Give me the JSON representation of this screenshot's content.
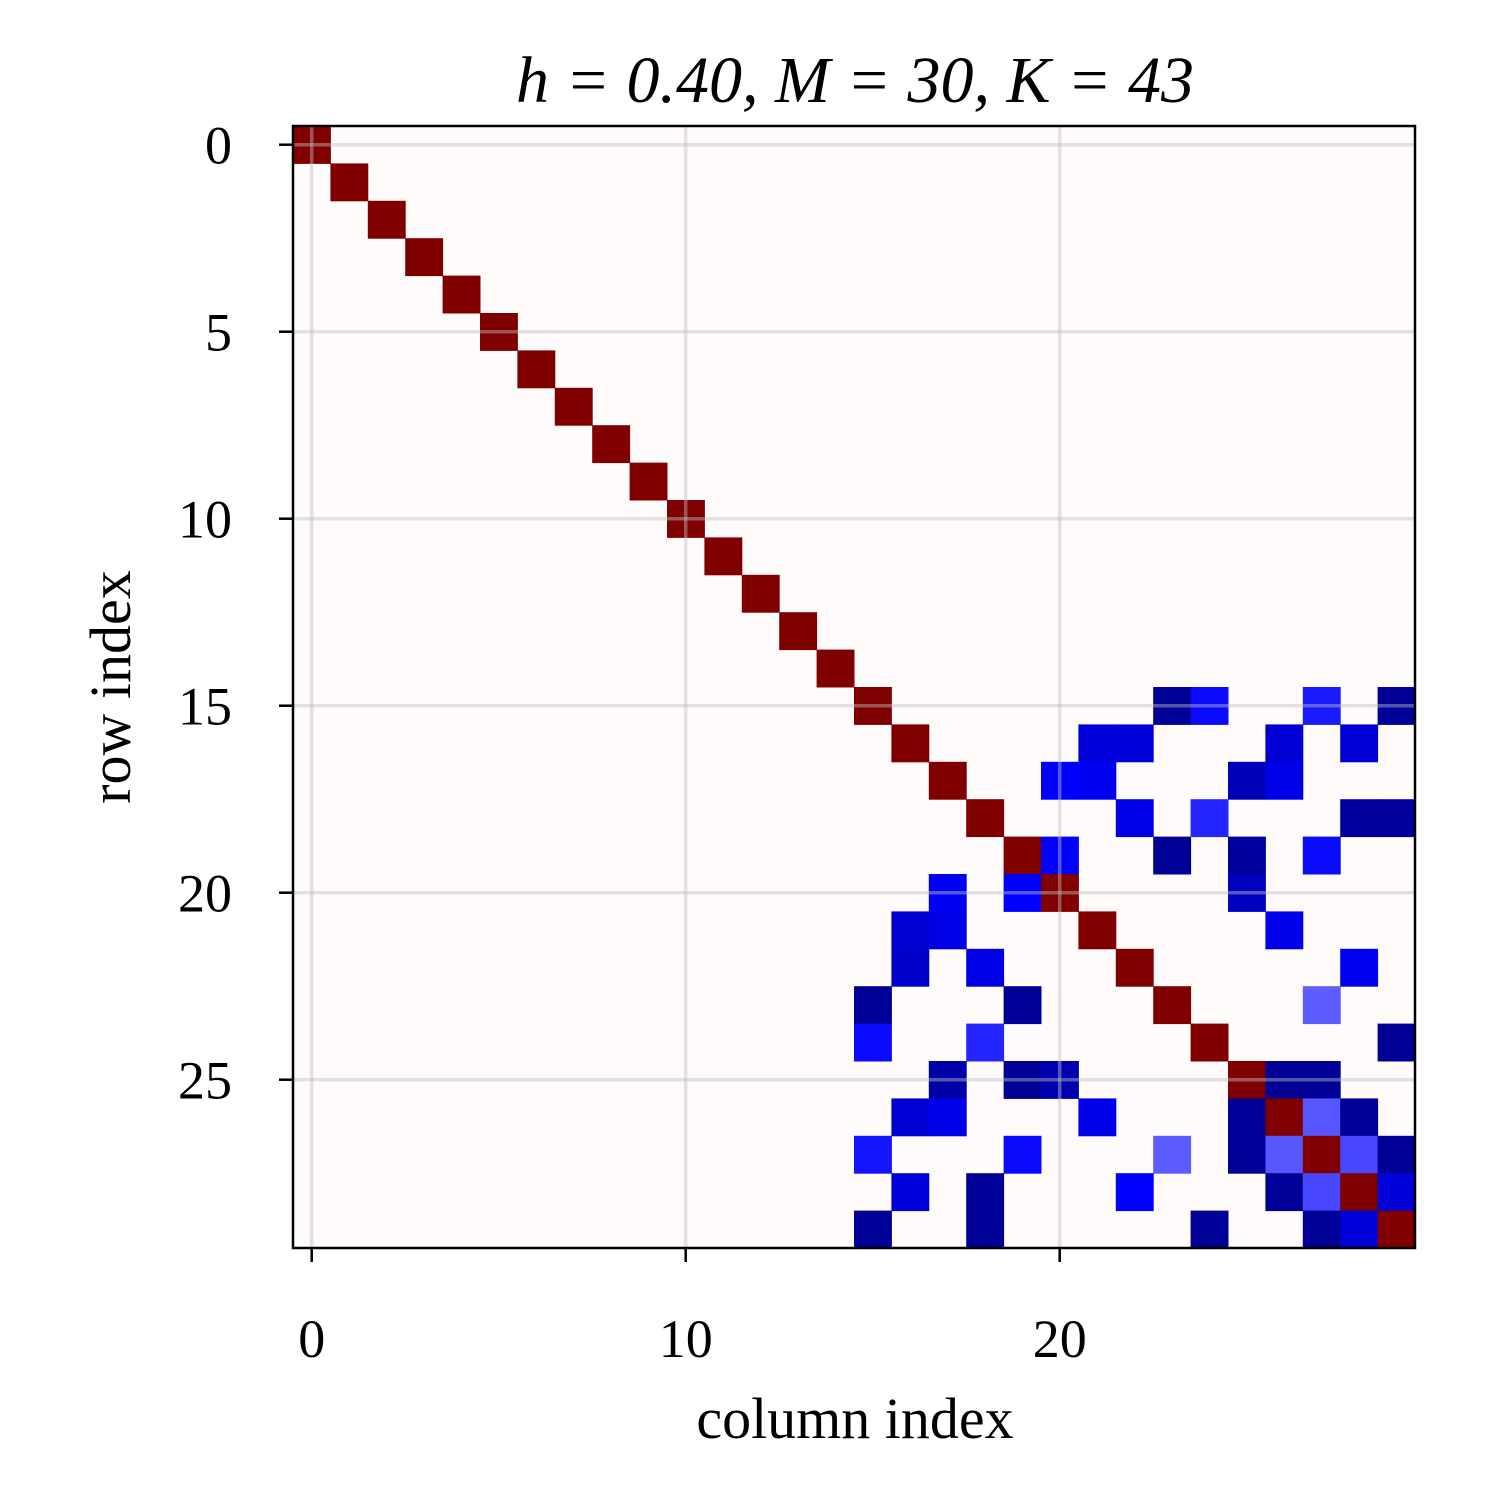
{
  "chart_data": {
    "type": "heatmap",
    "title": "h = 0.40, M = 30, K = 43",
    "xlabel": "column index",
    "ylabel": "row index",
    "n_rows": 30,
    "n_cols": 30,
    "colormap": "seismic",
    "vmin": -1,
    "vmax": 1,
    "grid": true,
    "x_ticks": [
      0,
      10,
      20
    ],
    "y_ticks": [
      0,
      5,
      10,
      15,
      20,
      25
    ],
    "x_tick_labels": [
      "0",
      "10",
      "20"
    ],
    "y_tick_labels": [
      "0",
      "5",
      "10",
      "15",
      "20",
      "25"
    ],
    "diagonal_value": 1,
    "default_value": 0,
    "entries": [
      [
        15,
        23,
        -0.79
      ],
      [
        15,
        24,
        -0.48
      ],
      [
        15,
        27,
        -0.45
      ],
      [
        15,
        29,
        -0.79
      ],
      [
        16,
        21,
        -0.6
      ],
      [
        16,
        22,
        -0.6
      ],
      [
        16,
        26,
        -0.62
      ],
      [
        16,
        28,
        -0.62
      ],
      [
        17,
        20,
        -0.5
      ],
      [
        17,
        21,
        -0.54
      ],
      [
        17,
        25,
        -0.69
      ],
      [
        17,
        26,
        -0.57
      ],
      [
        18,
        22,
        -0.57
      ],
      [
        18,
        24,
        -0.43
      ],
      [
        18,
        28,
        -0.77
      ],
      [
        18,
        29,
        -0.77
      ],
      [
        19,
        20,
        -0.5
      ],
      [
        19,
        23,
        -0.79
      ],
      [
        19,
        25,
        -0.77
      ],
      [
        19,
        27,
        -0.48
      ],
      [
        20,
        17,
        -0.53
      ],
      [
        20,
        19,
        -0.5
      ],
      [
        20,
        25,
        -0.68
      ],
      [
        21,
        16,
        -0.63
      ],
      [
        21,
        17,
        -0.57
      ],
      [
        21,
        26,
        -0.56
      ],
      [
        22,
        16,
        -0.64
      ],
      [
        22,
        18,
        -0.57
      ],
      [
        22,
        28,
        -0.53
      ],
      [
        23,
        15,
        -0.79
      ],
      [
        23,
        19,
        -0.79
      ],
      [
        23,
        27,
        -0.32
      ],
      [
        24,
        15,
        -0.48
      ],
      [
        24,
        18,
        -0.43
      ],
      [
        24,
        29,
        -0.79
      ],
      [
        25,
        17,
        -0.74
      ],
      [
        25,
        19,
        -0.79
      ],
      [
        25,
        20,
        -0.72
      ],
      [
        25,
        26,
        -0.79
      ],
      [
        25,
        27,
        -0.79
      ],
      [
        26,
        16,
        -0.63
      ],
      [
        26,
        17,
        -0.56
      ],
      [
        26,
        21,
        -0.56
      ],
      [
        26,
        25,
        -0.79
      ],
      [
        26,
        27,
        -0.33
      ],
      [
        26,
        28,
        -0.79
      ],
      [
        27,
        15,
        -0.46
      ],
      [
        27,
        19,
        -0.48
      ],
      [
        27,
        23,
        -0.32
      ],
      [
        27,
        25,
        -0.79
      ],
      [
        27,
        26,
        -0.33
      ],
      [
        27,
        28,
        -0.36
      ],
      [
        27,
        29,
        -0.79
      ],
      [
        28,
        16,
        -0.6
      ],
      [
        28,
        18,
        -0.79
      ],
      [
        28,
        22,
        -0.5
      ],
      [
        28,
        26,
        -0.79
      ],
      [
        28,
        27,
        -0.36
      ],
      [
        28,
        29,
        -0.61
      ],
      [
        29,
        15,
        -0.79
      ],
      [
        29,
        18,
        -0.79
      ],
      [
        29,
        24,
        -0.79
      ],
      [
        29,
        27,
        -0.79
      ],
      [
        29,
        28,
        -0.61
      ]
    ]
  }
}
